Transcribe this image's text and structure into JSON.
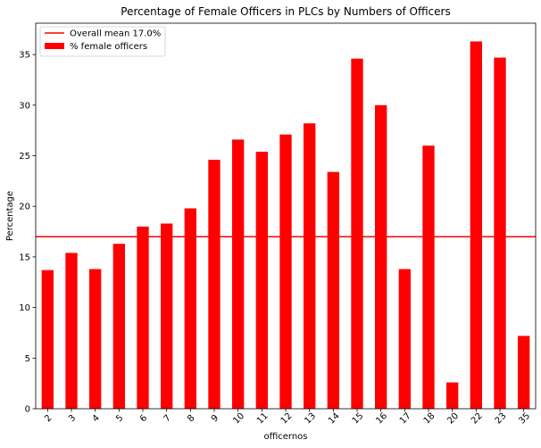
{
  "chart_data": {
    "type": "bar",
    "title": "Percentage of Female Officers in PLCs by Numbers of Officers",
    "xlabel": "officernos",
    "ylabel": "Percentage",
    "categories": [
      "2",
      "3",
      "4",
      "5",
      "6",
      "7",
      "8",
      "9",
      "10",
      "11",
      "12",
      "13",
      "14",
      "15",
      "16",
      "17",
      "18",
      "20",
      "22",
      "23",
      "35"
    ],
    "series": [
      {
        "name": "% female officers",
        "color": "#ff0000",
        "values": [
          13.7,
          15.4,
          13.8,
          16.3,
          18.0,
          18.3,
          19.8,
          24.6,
          26.6,
          25.4,
          27.1,
          28.2,
          23.4,
          34.6,
          30.0,
          13.8,
          26.0,
          2.6,
          36.3,
          34.7,
          7.2
        ]
      }
    ],
    "reference_line": {
      "name": "Overall mean 17.0%",
      "value": 17.0,
      "color": "#ff0000"
    },
    "ylim": [
      0,
      38.1
    ],
    "yticks": [
      0,
      5,
      10,
      15,
      20,
      25,
      30,
      35
    ],
    "grid": false,
    "legend_position": "upper left"
  }
}
